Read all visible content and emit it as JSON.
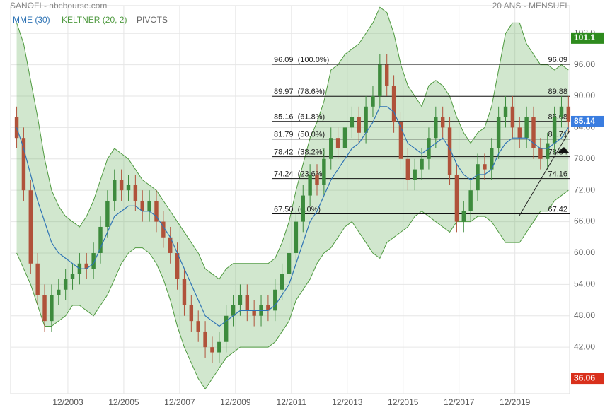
{
  "chart_data": {
    "type": "candlestick",
    "title": "SANOFI - abcbourse.com",
    "subtitle": "20 ANS - MENSUEL",
    "x": [
      1,
      4,
      7,
      10,
      13,
      16,
      19,
      22,
      25,
      28,
      31,
      34,
      37,
      40,
      43,
      46,
      49,
      52,
      55,
      58,
      61,
      64,
      67,
      70,
      73,
      76,
      79,
      82,
      85,
      88,
      91,
      94,
      97,
      100,
      103,
      106,
      109,
      112,
      115,
      118,
      121,
      124,
      127,
      130,
      133,
      136,
      139,
      142,
      145,
      148,
      151,
      154,
      157,
      160,
      163,
      166,
      169,
      172,
      175,
      178,
      181,
      184,
      187,
      190,
      193,
      196,
      199,
      202,
      205,
      208,
      211,
      214,
      217,
      220,
      223,
      226,
      229,
      232,
      235,
      238
    ],
    "candles": [
      [
        86,
        88,
        80,
        82
      ],
      [
        82,
        84,
        70,
        72
      ],
      [
        72,
        74,
        56,
        58
      ],
      [
        58,
        60,
        50,
        52
      ],
      [
        52,
        54,
        45,
        47
      ],
      [
        47,
        54,
        45,
        52
      ],
      [
        52,
        55,
        50,
        53
      ],
      [
        53,
        57,
        51,
        55
      ],
      [
        55,
        58,
        53,
        56
      ],
      [
        56,
        60,
        54,
        58
      ],
      [
        58,
        60,
        55,
        57
      ],
      [
        57,
        62,
        55,
        60
      ],
      [
        60,
        67,
        58,
        65
      ],
      [
        65,
        72,
        63,
        70
      ],
      [
        70,
        76,
        68,
        74
      ],
      [
        74,
        76,
        70,
        72
      ],
      [
        72,
        75,
        70,
        73
      ],
      [
        73,
        75,
        68,
        70
      ],
      [
        70,
        72,
        66,
        68
      ],
      [
        68,
        72,
        66,
        70
      ],
      [
        70,
        72,
        64,
        66
      ],
      [
        66,
        68,
        61,
        63
      ],
      [
        63,
        65,
        58,
        60
      ],
      [
        60,
        62,
        53,
        55
      ],
      [
        55,
        57,
        48,
        50
      ],
      [
        50,
        52,
        45,
        47
      ],
      [
        47,
        49,
        43,
        45
      ],
      [
        45,
        47,
        40,
        42
      ],
      [
        42,
        44,
        39,
        41
      ],
      [
        41,
        45,
        39,
        43
      ],
      [
        43,
        50,
        41,
        48
      ],
      [
        48,
        52,
        46,
        50
      ],
      [
        50,
        54,
        48,
        52
      ],
      [
        52,
        54,
        47,
        49
      ],
      [
        49,
        51,
        46,
        48
      ],
      [
        48,
        52,
        46,
        50
      ],
      [
        50,
        52,
        47,
        49
      ],
      [
        49,
        55,
        47,
        53
      ],
      [
        53,
        58,
        51,
        56
      ],
      [
        56,
        62,
        54,
        60
      ],
      [
        60,
        68,
        58,
        66
      ],
      [
        66,
        73,
        64,
        71
      ],
      [
        71,
        77,
        69,
        75
      ],
      [
        75,
        77,
        71,
        73
      ],
      [
        73,
        80,
        71,
        78
      ],
      [
        78,
        84,
        76,
        82
      ],
      [
        82,
        84,
        78,
        80
      ],
      [
        80,
        86,
        78,
        84
      ],
      [
        84,
        88,
        82,
        86
      ],
      [
        86,
        88,
        81,
        83
      ],
      [
        83,
        90,
        81,
        88
      ],
      [
        88,
        92,
        86,
        90
      ],
      [
        90,
        98,
        88,
        96
      ],
      [
        96,
        98,
        90,
        92
      ],
      [
        92,
        94,
        83,
        85
      ],
      [
        85,
        87,
        76,
        78
      ],
      [
        78,
        80,
        72,
        74
      ],
      [
        74,
        78,
        72,
        76
      ],
      [
        76,
        80,
        74,
        78
      ],
      [
        78,
        84,
        76,
        82
      ],
      [
        82,
        88,
        80,
        86
      ],
      [
        86,
        88,
        82,
        84
      ],
      [
        84,
        86,
        73,
        75
      ],
      [
        75,
        77,
        64,
        66
      ],
      [
        66,
        70,
        64,
        68
      ],
      [
        68,
        74,
        66,
        72
      ],
      [
        72,
        79,
        70,
        77
      ],
      [
        77,
        79,
        74,
        76
      ],
      [
        76,
        82,
        74,
        80
      ],
      [
        80,
        88,
        78,
        86
      ],
      [
        86,
        90,
        84,
        88
      ],
      [
        88,
        90,
        82,
        84
      ],
      [
        84,
        86,
        80,
        82
      ],
      [
        82,
        88,
        80,
        86
      ],
      [
        86,
        88,
        78,
        80
      ],
      [
        80,
        82,
        76,
        78
      ],
      [
        78,
        83,
        76,
        81
      ],
      [
        81,
        88,
        79,
        86
      ],
      [
        86,
        90,
        84,
        88
      ],
      [
        88,
        90,
        83,
        85
      ]
    ],
    "up_color": "#3d8b3d",
    "down_color": "#b0523a",
    "mme": {
      "name": "MME (30)",
      "color": "#2f74b5",
      "values": [
        84,
        80,
        75,
        70,
        66,
        62,
        60,
        59,
        58,
        57,
        57,
        58,
        61,
        64,
        67,
        68,
        69,
        69,
        68,
        68,
        67,
        65,
        63,
        60,
        57,
        54,
        51,
        48,
        47,
        46,
        47,
        48,
        49,
        49,
        49,
        49,
        49,
        50,
        52,
        54,
        58,
        62,
        66,
        68,
        71,
        74,
        76,
        78,
        80,
        81,
        83,
        85,
        88,
        88,
        87,
        84,
        81,
        80,
        79,
        80,
        81,
        82,
        80,
        77,
        75,
        74,
        75,
        75,
        76,
        79,
        81,
        82,
        82,
        82,
        81,
        80,
        80,
        81,
        82,
        84
      ]
    },
    "keltner": {
      "name": "KELTNER (20, 2)",
      "color": "#4f9a40",
      "fill": "rgba(90,170,80,0.28)",
      "upper": [
        104,
        100,
        93,
        86,
        78,
        72,
        69,
        67,
        66,
        65,
        67,
        70,
        74,
        78,
        80,
        79,
        78,
        76,
        74,
        73,
        72,
        70,
        68,
        66,
        64,
        62,
        60,
        57,
        56,
        55,
        57,
        58,
        58,
        58,
        58,
        58,
        58,
        59,
        62,
        66,
        72,
        77,
        82,
        85,
        89,
        95,
        96,
        98,
        99,
        100,
        102,
        104,
        107,
        106,
        102,
        96,
        92,
        90,
        88,
        92,
        93,
        92,
        90,
        86,
        83,
        81,
        83,
        84,
        88,
        95,
        102,
        104,
        104,
        100,
        98,
        96,
        96,
        95,
        96,
        95
      ],
      "lower": [
        60,
        57,
        54,
        50,
        46,
        46,
        47,
        48,
        50,
        50,
        49,
        48,
        50,
        52,
        55,
        58,
        60,
        61,
        61,
        60,
        58,
        55,
        51,
        46,
        42,
        39,
        36,
        34,
        36,
        38,
        40,
        41,
        42,
        42,
        42,
        42,
        42,
        43,
        45,
        47,
        51,
        53,
        55,
        58,
        60,
        61,
        63,
        65,
        66,
        64,
        62,
        60,
        59,
        62,
        63,
        64,
        65,
        67,
        68,
        67,
        66,
        65,
        64,
        66,
        66,
        66,
        67,
        67,
        66,
        64,
        62,
        62,
        62,
        64,
        66,
        68,
        68,
        70,
        71,
        72
      ]
    },
    "pivots": {
      "name": "PIVOTS",
      "color": "#666",
      "levels": [
        {
          "value": 96.09,
          "label": "96.09  (100.0%)",
          "end_label": "96.09"
        },
        {
          "value": 89.97,
          "label": "89.97  (78.6%)",
          "end_label": "89.88"
        },
        {
          "value": 85.16,
          "label": "85.16  (61.8%)",
          "end_label": "85.08"
        },
        {
          "value": 81.79,
          "label": "81.79  (50.0%)",
          "end_label": "81.71"
        },
        {
          "value": 78.42,
          "label": "78.42  (38.2%)",
          "end_label": "78.34"
        },
        {
          "value": 74.24,
          "label": "74.24  (23.6%)",
          "end_label": "74.16"
        },
        {
          "value": 67.5,
          "label": "67.50  (0.0%)",
          "end_label": "67.42"
        }
      ]
    },
    "price_tags": [
      {
        "value": 101.1,
        "label": "101.1",
        "color": "#2e8b1e"
      },
      {
        "value": 85.14,
        "label": "85.14",
        "color": "#3a7de0"
      },
      {
        "value": 36.06,
        "label": "36.06",
        "color": "#d9301c"
      }
    ],
    "xlim": [
      -1.6,
      238.5
    ],
    "ylim": [
      33.1,
      107.3
    ],
    "xticks": [
      {
        "value": 23,
        "label": "12/2003"
      },
      {
        "value": 47,
        "label": "12/2005"
      },
      {
        "value": 71,
        "label": "12/2007"
      },
      {
        "value": 95,
        "label": "12/2009"
      },
      {
        "value": 119,
        "label": "12/2011"
      },
      {
        "value": 143,
        "label": "12/2013"
      },
      {
        "value": 167,
        "label": "12/2015"
      },
      {
        "value": 191,
        "label": "12/2017"
      },
      {
        "value": 215,
        "label": "12/2019"
      }
    ],
    "yticks": [
      {
        "value": 42,
        "label": "42.00"
      },
      {
        "value": 48,
        "label": "48.00"
      },
      {
        "value": 54,
        "label": "54.00"
      },
      {
        "value": 60,
        "label": "60.00"
      },
      {
        "value": 66,
        "label": "66.00"
      },
      {
        "value": 72,
        "label": "72.00"
      },
      {
        "value": 78,
        "label": "78.00"
      },
      {
        "value": 84,
        "label": "84.00"
      },
      {
        "value": 90,
        "label": "90.00"
      },
      {
        "value": 96,
        "label": "96.00"
      },
      {
        "value": 102,
        "label": "102.0"
      }
    ],
    "grid": true
  }
}
